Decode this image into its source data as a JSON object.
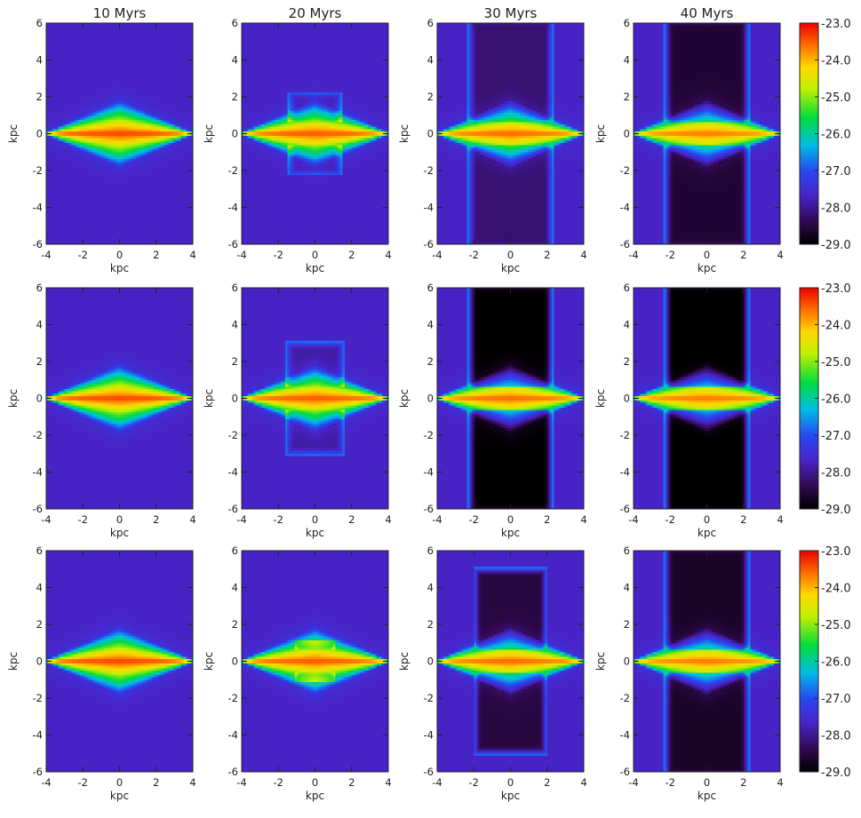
{
  "chart_data": {
    "type": "heatmap",
    "description_units": "log density map panels (3 rows x 4 times)",
    "columns": [
      "10 Myrs",
      "20 Myrs",
      "30 Myrs",
      "40 Myrs"
    ],
    "rows": 3,
    "xlabel": "kpc",
    "ylabel": "kpc",
    "xlim": [
      -4,
      4
    ],
    "ylim": [
      -6,
      6
    ],
    "xticks": [
      -4,
      -2,
      0,
      2,
      4
    ],
    "yticks": [
      -6,
      -4,
      -2,
      0,
      2,
      4,
      6
    ],
    "xtick_labels": [
      "-4",
      "-2",
      "0",
      "2",
      "4"
    ],
    "ytick_labels": [
      "-6",
      "-4",
      "-2",
      "0",
      "2",
      "4",
      "6"
    ],
    "colorbar": {
      "range": [
        -29.0,
        -23.0
      ],
      "ticks": [
        -23.0,
        -24.0,
        -25.0,
        -26.0,
        -27.0,
        -28.0,
        -29.0
      ],
      "tick_labels": [
        "-23.0",
        "-24.0",
        "-25.0",
        "-26.0",
        "-27.0",
        "-28.0",
        "-29.0"
      ],
      "colormap": "rainbow"
    },
    "background_value": -27.7,
    "outflow_value": -29.0,
    "disk_peak_value": -23.2,
    "panels": [
      {
        "row": 0,
        "col": 0,
        "time": "10 Myrs",
        "disk_halfwidth": 4,
        "disk_peak": -23.3,
        "outflow_extent": 0,
        "outflow_depth": 0
      },
      {
        "row": 0,
        "col": 1,
        "time": "20 Myrs",
        "disk_halfwidth": 4,
        "disk_peak": -23.4,
        "outflow_extent": 2.0,
        "outflow_depth": 0.2
      },
      {
        "row": 0,
        "col": 2,
        "time": "30 Myrs",
        "disk_halfwidth": 4,
        "disk_peak": -23.5,
        "outflow_extent": 6.0,
        "outflow_depth": 0.5
      },
      {
        "row": 0,
        "col": 3,
        "time": "40 Myrs",
        "disk_halfwidth": 4,
        "disk_peak": -23.6,
        "outflow_extent": 6.0,
        "outflow_depth": 0.9
      },
      {
        "row": 1,
        "col": 0,
        "time": "10 Myrs",
        "disk_halfwidth": 4,
        "disk_peak": -23.3,
        "outflow_extent": 0,
        "outflow_depth": 0
      },
      {
        "row": 1,
        "col": 1,
        "time": "20 Myrs",
        "disk_halfwidth": 4,
        "disk_peak": -23.4,
        "outflow_extent": 2.8,
        "outflow_depth": 0.2
      },
      {
        "row": 1,
        "col": 2,
        "time": "30 Myrs",
        "disk_halfwidth": 4,
        "disk_peak": -23.5,
        "outflow_extent": 6.0,
        "outflow_depth": 1.3
      },
      {
        "row": 1,
        "col": 3,
        "time": "40 Myrs",
        "disk_halfwidth": 4,
        "disk_peak": -23.6,
        "outflow_extent": 6.0,
        "outflow_depth": 1.4
      },
      {
        "row": 2,
        "col": 0,
        "time": "10 Myrs",
        "disk_halfwidth": 4,
        "disk_peak": -23.3,
        "outflow_extent": 0,
        "outflow_depth": 0
      },
      {
        "row": 2,
        "col": 1,
        "time": "20 Myrs",
        "disk_halfwidth": 4,
        "disk_peak": -23.4,
        "outflow_extent": 0.8,
        "outflow_depth": 0.2
      },
      {
        "row": 2,
        "col": 2,
        "time": "30 Myrs",
        "disk_halfwidth": 4,
        "disk_peak": -23.5,
        "outflow_extent": 4.8,
        "outflow_depth": 0.8
      },
      {
        "row": 2,
        "col": 3,
        "time": "40 Myrs",
        "disk_halfwidth": 4,
        "disk_peak": -23.6,
        "outflow_extent": 6.0,
        "outflow_depth": 1.0
      }
    ]
  }
}
